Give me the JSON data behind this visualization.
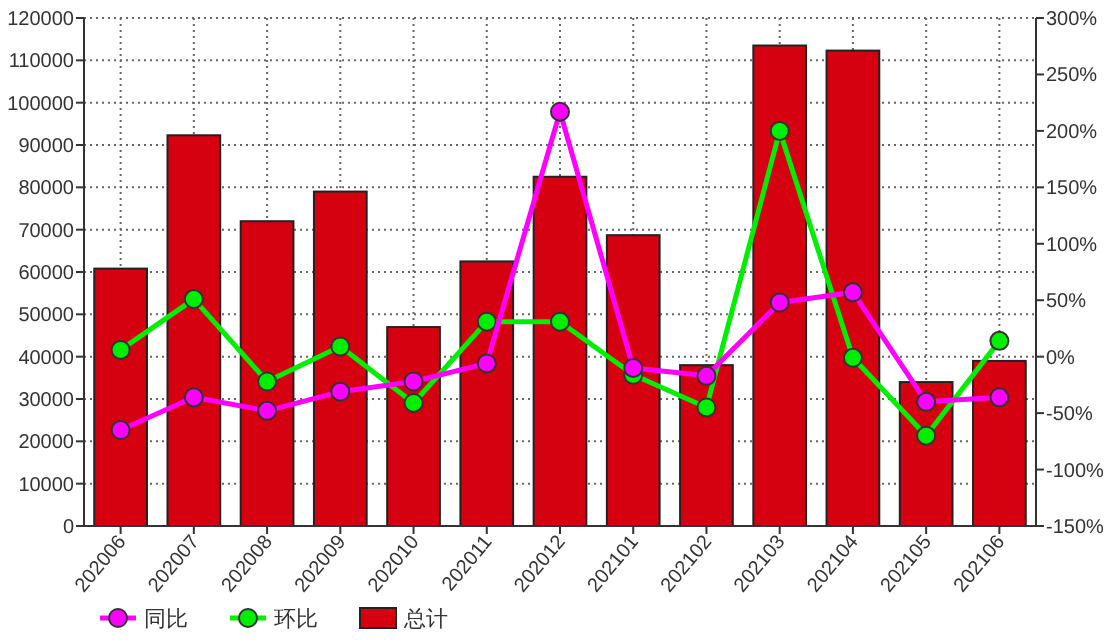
{
  "chart_data": {
    "type": "bar",
    "categories": [
      "202006",
      "202007",
      "202008",
      "202009",
      "202010",
      "202011",
      "202012",
      "202101",
      "202102",
      "202103",
      "202104",
      "202105",
      "202106"
    ],
    "series": [
      {
        "name": "同比",
        "type": "line",
        "axis": "y2",
        "color": "#ff00ff",
        "marker": "circle",
        "values": [
          -65,
          -36,
          -48,
          -31,
          -22,
          -6,
          217,
          -10,
          -17,
          48,
          57,
          -40,
          -36
        ]
      },
      {
        "name": "环比",
        "type": "line",
        "axis": "y2",
        "color": "#00ee00",
        "marker": "circle",
        "values": [
          6,
          51,
          -22,
          9,
          -41,
          31,
          31,
          -16,
          -45,
          200,
          -1,
          -70,
          14
        ]
      },
      {
        "name": "总计",
        "color": "#d50010",
        "values": [
          60800,
          92300,
          72000,
          79000,
          47000,
          62500,
          82500,
          68700,
          38000,
          113500,
          112300,
          34000,
          39000
        ]
      }
    ],
    "ylim": [
      0,
      120000
    ],
    "yticks": [
      0,
      10000,
      20000,
      30000,
      40000,
      50000,
      60000,
      70000,
      80000,
      90000,
      100000,
      110000,
      120000
    ],
    "y2lim": [
      -150,
      300
    ],
    "y2ticks": [
      {
        "value": -150,
        "label": "-150%"
      },
      {
        "value": -100,
        "label": "-100%"
      },
      {
        "value": -50,
        "label": "-50%"
      },
      {
        "value": 0,
        "label": "0%"
      },
      {
        "value": 50,
        "label": "50%"
      },
      {
        "value": 100,
        "label": "100%"
      },
      {
        "value": 150,
        "label": "150%"
      },
      {
        "value": 200,
        "label": "200%"
      },
      {
        "value": 250,
        "label": "250%"
      },
      {
        "value": 300,
        "label": "300%"
      }
    ],
    "grid": true,
    "legend": "bottom"
  }
}
